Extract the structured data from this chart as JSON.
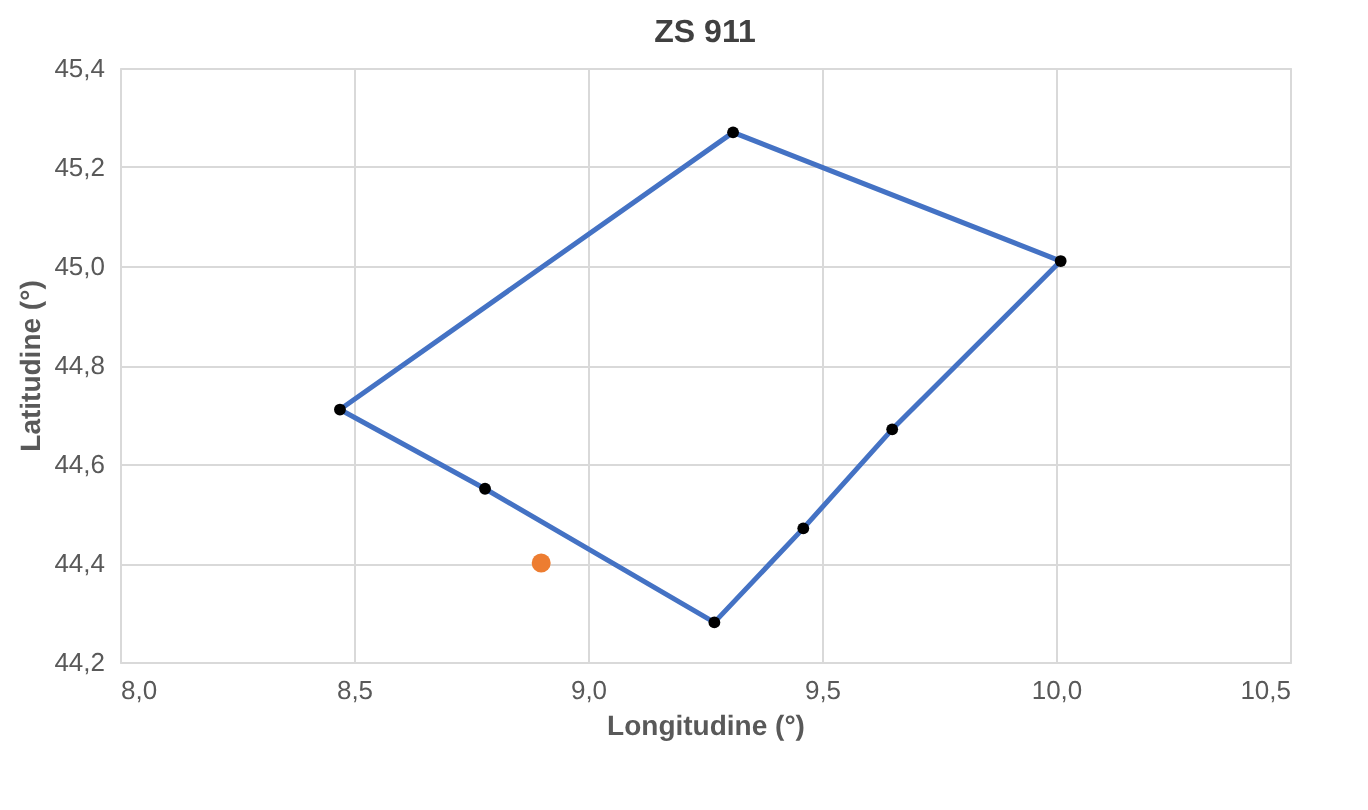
{
  "chart_data": {
    "type": "line",
    "title": "ZS 911",
    "xlabel": "Longitudine (°)",
    "ylabel": "Latitudine (°)",
    "xlim": [
      8.0,
      10.5
    ],
    "xticks": [
      {
        "value": 8.0,
        "label": "8,0"
      },
      {
        "value": 8.5,
        "label": "8,5"
      },
      {
        "value": 9.0,
        "label": "9,0"
      },
      {
        "value": 9.5,
        "label": "9,5"
      },
      {
        "value": 10.0,
        "label": "10,0"
      },
      {
        "value": 10.5,
        "label": "10,5"
      }
    ],
    "ylim": [
      44.2,
      45.4
    ],
    "yticks": [
      {
        "value": 44.2,
        "label": "44,2"
      },
      {
        "value": 44.4,
        "label": "44,4"
      },
      {
        "value": 44.6,
        "label": "44,6"
      },
      {
        "value": 44.8,
        "label": "44,8"
      },
      {
        "value": 45.0,
        "label": "45,0"
      },
      {
        "value": 45.2,
        "label": "45,2"
      },
      {
        "value": 45.4,
        "label": "45,4"
      }
    ],
    "grid": true,
    "series": [
      {
        "type": "line",
        "color": "#4472c4",
        "marker": "none",
        "line_style": "solid",
        "x": [
          8.47,
          9.31,
          10.01
        ],
        "values": [
          44.71,
          45.27,
          45.01
        ]
      },
      {
        "type": "line",
        "color": "#4472c4",
        "marker": "none",
        "line_style": "solid",
        "x": [
          8.47,
          8.78,
          9.27,
          9.46,
          9.65,
          10.01
        ],
        "values": [
          44.71,
          44.55,
          44.28,
          44.47,
          44.67,
          45.01
        ]
      },
      {
        "type": "scatter",
        "color": "#000000",
        "marker": "circle",
        "x": [
          8.47,
          9.31,
          10.01,
          9.65,
          9.46,
          9.27,
          8.78
        ],
        "values": [
          44.71,
          45.27,
          45.01,
          44.67,
          44.47,
          44.28,
          44.55
        ]
      },
      {
        "type": "scatter",
        "color": "#ed7d31",
        "marker": "circle",
        "x": [
          8.9
        ],
        "values": [
          44.4
        ]
      }
    ]
  }
}
